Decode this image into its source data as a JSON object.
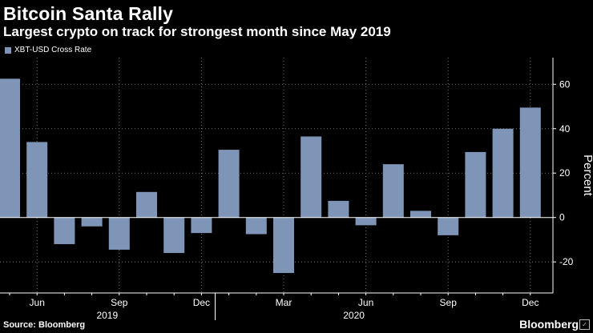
{
  "header": {
    "title": "Bitcoin Santa Rally",
    "subtitle": "Largest crypto on track for strongest month since May 2019"
  },
  "footer": {
    "source": "Source: Bloomberg",
    "brand": "Bloomberg"
  },
  "colors": {
    "bar": "#7f95b8",
    "background": "#000000",
    "grid": "#8a8a8a"
  },
  "chart_data": {
    "type": "bar",
    "title": "Bitcoin Santa Rally",
    "subtitle": "Largest crypto on track for strongest month since May 2019",
    "xlabel": "",
    "ylabel": "Percent",
    "ylim": [
      -34,
      72
    ],
    "yticks": [
      -20,
      0,
      20,
      40,
      60
    ],
    "grid": true,
    "legend_position": "top-left",
    "categories": [
      "May 2019",
      "Jun 2019",
      "Jul 2019",
      "Aug 2019",
      "Sep 2019",
      "Oct 2019",
      "Nov 2019",
      "Dec 2019",
      "Jan 2020",
      "Feb 2020",
      "Mar 2020",
      "Apr 2020",
      "May 2020",
      "Jun 2020",
      "Jul 2020",
      "Aug 2020",
      "Sep 2020",
      "Oct 2020",
      "Nov 2020",
      "Dec 2020"
    ],
    "x_tick_labels": [
      {
        "index": 1,
        "label": "Jun"
      },
      {
        "index": 4,
        "label": "Sep"
      },
      {
        "index": 7,
        "label": "Dec"
      },
      {
        "index": 10,
        "label": "Mar"
      },
      {
        "index": 13,
        "label": "Jun"
      },
      {
        "index": 16,
        "label": "Sep"
      },
      {
        "index": 19,
        "label": "Dec"
      }
    ],
    "year_labels": [
      {
        "index": 4,
        "label": "2019"
      },
      {
        "index": 13,
        "label": "2020"
      }
    ],
    "series": [
      {
        "name": "XBT-USD Cross Rate",
        "values": [
          62.5,
          34,
          -12,
          -4,
          -14.5,
          11.5,
          -16,
          -7,
          30.5,
          -7.5,
          -25,
          36.5,
          7.5,
          -3.5,
          24,
          3,
          -8,
          29.5,
          40,
          49.5
        ]
      }
    ]
  }
}
